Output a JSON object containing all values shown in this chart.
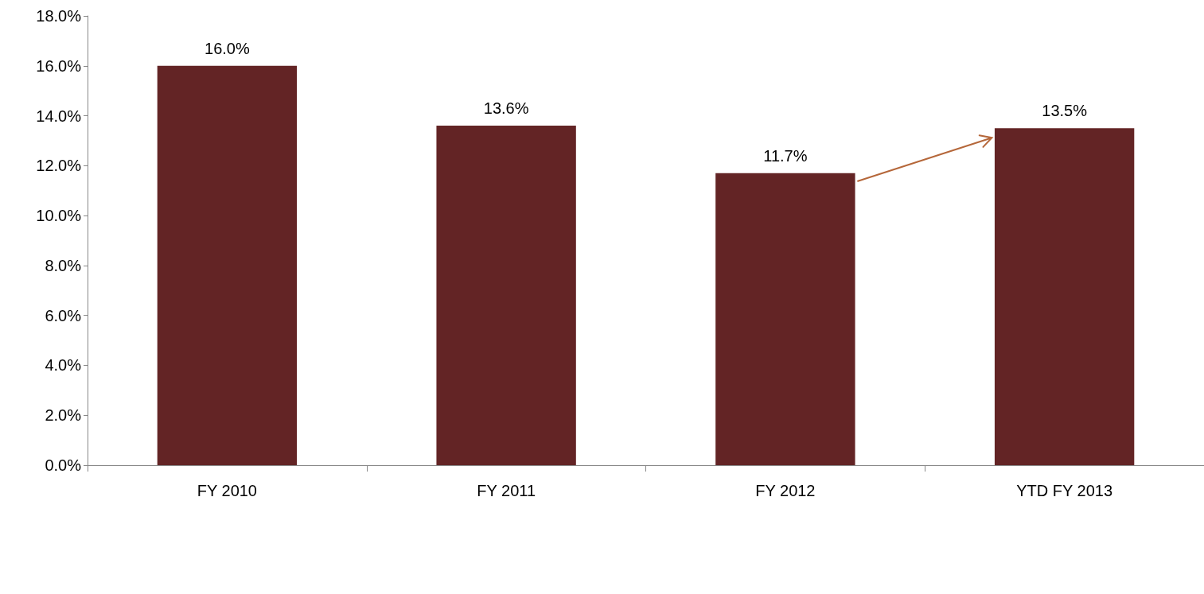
{
  "chart_data": {
    "type": "bar",
    "categories": [
      "FY 2010",
      "FY 2011",
      "FY 2012",
      "YTD FY 2013"
    ],
    "values": [
      16.0,
      13.6,
      11.7,
      13.5
    ],
    "value_labels": [
      "16.0%",
      "13.6%",
      "11.7%",
      "13.5%"
    ],
    "color": "#632425",
    "ylim": [
      0,
      18
    ],
    "yticks": [
      {
        "value": 0,
        "label": "0.0%"
      },
      {
        "value": 2,
        "label": "2.0%"
      },
      {
        "value": 4,
        "label": "4.0%"
      },
      {
        "value": 6,
        "label": "6.0%"
      },
      {
        "value": 8,
        "label": "8.0%"
      },
      {
        "value": 10,
        "label": "10.0%"
      },
      {
        "value": 12,
        "label": "12.0%"
      },
      {
        "value": 14,
        "label": "14.0%"
      },
      {
        "value": 16,
        "label": "16.0%"
      },
      {
        "value": 18,
        "label": "18.0%"
      }
    ],
    "grid": false
  }
}
